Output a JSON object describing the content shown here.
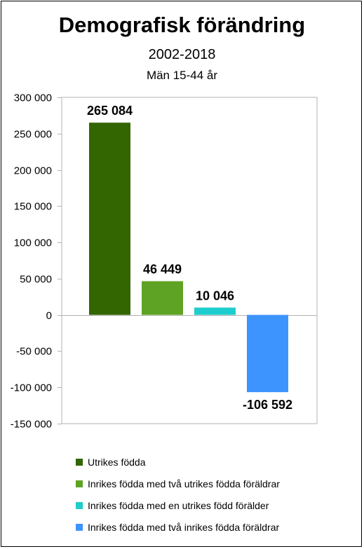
{
  "chart_data": {
    "type": "bar",
    "title": "Demografisk förändring",
    "subtitle": "2002-2018",
    "subtitle2": "Män 15-44 år",
    "categories": [
      "Utrikes födda",
      "Inrikes födda med två utrikes födda föräldrar",
      "Inrikes födda med  en utrikes född förälder",
      "Inrikes födda med två inrikes födda föräldrar"
    ],
    "values": [
      265084,
      46449,
      10046,
      -106592
    ],
    "data_labels": [
      "265 084",
      "46 449",
      "10 046",
      "-106 592"
    ],
    "colors": [
      "#336600",
      "#5ea323",
      "#1ecdcd",
      "#3d94ff"
    ],
    "ylim": [
      -150000,
      300000
    ],
    "yticks": [
      300000,
      250000,
      200000,
      150000,
      100000,
      50000,
      0,
      -50000,
      -100000,
      -150000
    ],
    "ytick_labels": [
      "300 000",
      "250 000",
      "200 000",
      "150 000",
      "100 000",
      "50 000",
      "0",
      "-50 000",
      "-100 000",
      "-150 000"
    ],
    "grid": false,
    "legend_position": "bottom"
  }
}
